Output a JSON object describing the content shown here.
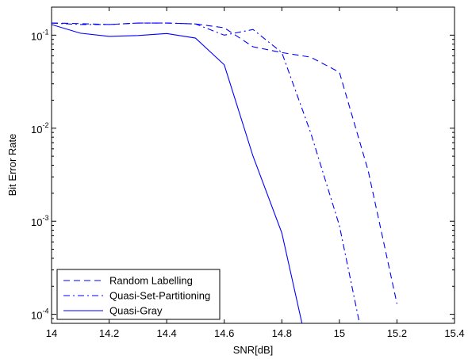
{
  "chart_data": {
    "type": "line",
    "xlabel": "SNR[dB]",
    "ylabel": "Bit Error Rate",
    "xlim": [
      14,
      15.4
    ],
    "ylim": [
      8e-05,
      0.2
    ],
    "yscale": "log",
    "x_ticks": [
      "14",
      "14.2",
      "14.4",
      "14.6",
      "14.8",
      "15",
      "15.2",
      "15.4"
    ],
    "y_ticks": [
      {
        "base": "10",
        "exp": "-1",
        "value": 0.1
      },
      {
        "base": "10",
        "exp": "-2",
        "value": 0.01
      },
      {
        "base": "10",
        "exp": "-3",
        "value": 0.001
      },
      {
        "base": "10",
        "exp": "-4",
        "value": 0.0001
      }
    ],
    "grid": false,
    "legend_position": "bottom-left",
    "color": "#0000ff",
    "series": [
      {
        "name": "Random Labelling",
        "style": "dashed",
        "x": [
          14.0,
          14.1,
          14.2,
          14.3,
          14.4,
          14.5,
          14.6,
          14.7,
          14.8,
          14.9,
          15.0,
          15.1,
          15.2
        ],
        "y": [
          0.135,
          0.133,
          0.13,
          0.135,
          0.135,
          0.132,
          0.12,
          0.075,
          0.065,
          0.058,
          0.04,
          0.0035,
          0.00013
        ]
      },
      {
        "name": "Quasi-Set-Partitioning",
        "style": "dashdot",
        "x": [
          14.0,
          14.1,
          14.2,
          14.3,
          14.4,
          14.5,
          14.6,
          14.7,
          14.8,
          14.9,
          15.0,
          15.07
        ],
        "y": [
          0.135,
          0.13,
          0.13,
          0.135,
          0.135,
          0.132,
          0.1,
          0.115,
          0.065,
          0.009,
          0.0009,
          8e-05
        ]
      },
      {
        "name": "Quasi-Gray",
        "style": "solid",
        "x": [
          14.0,
          14.1,
          14.2,
          14.3,
          14.4,
          14.5,
          14.6,
          14.7,
          14.8,
          14.87
        ],
        "y": [
          0.13,
          0.105,
          0.097,
          0.099,
          0.104,
          0.093,
          0.048,
          0.005,
          0.00075,
          8e-05
        ]
      }
    ]
  }
}
